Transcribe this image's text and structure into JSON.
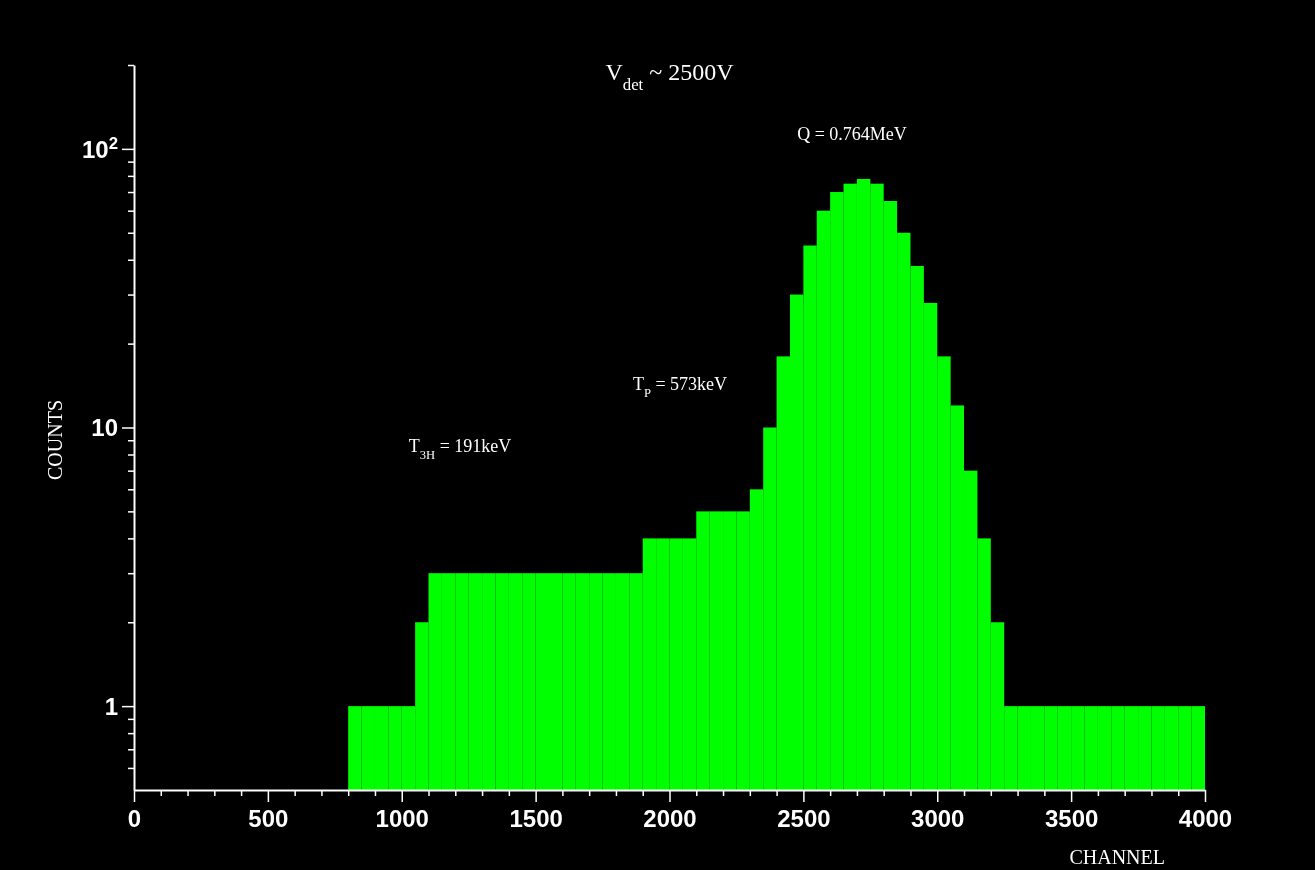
{
  "chart_data": {
    "type": "histogram",
    "title": "V$_{det}$ ~ 2500V",
    "xlabel": "CHANNEL",
    "ylabel": "COUNTS",
    "color": "#00ff00",
    "log": "y",
    "grid": false,
    "bins": [
      800,
      850,
      900,
      950,
      1000,
      1050,
      1100,
      1150,
      1200,
      1250,
      1300,
      1350,
      1400,
      1450,
      1500,
      1550,
      1600,
      1650,
      1700,
      1750,
      1800,
      1850,
      1900,
      1950,
      2000,
      2050,
      2100,
      2150,
      2200,
      2250,
      2300,
      2350,
      2400,
      2450,
      2500,
      2550,
      2600,
      2650,
      2700,
      2750,
      2800,
      2850,
      2900,
      2950,
      3000,
      3050,
      3100,
      3150,
      3200,
      3250,
      3300,
      3350,
      3400,
      3450,
      3500,
      3550,
      3600,
      3650,
      3700,
      3750,
      3800,
      3850,
      3900,
      3950,
      4000
    ],
    "values": [
      1,
      1,
      1,
      1,
      1,
      2,
      3,
      3,
      3,
      3,
      3,
      3,
      3,
      3,
      3,
      3,
      3,
      3,
      3,
      3,
      3,
      3,
      4,
      4,
      4,
      4,
      5,
      5,
      5,
      5,
      6,
      10,
      18,
      30,
      45,
      60,
      70,
      75,
      78,
      75,
      65,
      50,
      38,
      28,
      18,
      12,
      7,
      4,
      2,
      1,
      1,
      1,
      1,
      1,
      1,
      1,
      1,
      1,
      1,
      1,
      1,
      1,
      1,
      1
    ],
    "xlim": [
      0,
      4000
    ],
    "ylim": [
      0.5,
      200
    ],
    "xticks": [
      0,
      {
        "value": 100,
        "label": null
      },
      {
        "value": 200,
        "label": null
      },
      {
        "value": 300,
        "label": null
      },
      {
        "value": 400,
        "label": null
      },
      500,
      {
        "value": 600,
        "label": null
      },
      {
        "value": 700,
        "label": null
      },
      {
        "value": 800,
        "label": null
      },
      {
        "value": 900,
        "label": null
      },
      1000,
      {
        "value": 1100,
        "label": null
      },
      {
        "value": 1200,
        "label": null
      },
      {
        "value": 1300,
        "label": null
      },
      {
        "value": 1400,
        "label": null
      },
      1500,
      {
        "value": 1600,
        "label": null
      },
      {
        "value": 1700,
        "label": null
      },
      {
        "value": 1800,
        "label": null
      },
      {
        "value": 1900,
        "label": null
      },
      2000,
      {
        "value": 2100,
        "label": null
      },
      {
        "value": 2200,
        "label": null
      },
      {
        "value": 2300,
        "label": null
      },
      {
        "value": 2400,
        "label": null
      },
      2500,
      {
        "value": 2600,
        "label": null
      },
      {
        "value": 2700,
        "label": null
      },
      {
        "value": 2800,
        "label": null
      },
      {
        "value": 2900,
        "label": null
      },
      3000,
      {
        "value": 3100,
        "label": null
      },
      {
        "value": 3200,
        "label": null
      },
      {
        "value": 3300,
        "label": null
      },
      {
        "value": 3400,
        "label": null
      },
      3500,
      {
        "value": 3600,
        "label": null
      },
      {
        "value": 3700,
        "label": null
      },
      {
        "value": 3800,
        "label": null
      },
      {
        "value": 3900,
        "label": null
      },
      4000
    ],
    "yticks": [
      {
        "value": 0.6,
        "label": null
      },
      {
        "value": 0.7,
        "label": null
      },
      {
        "value": 0.8,
        "label": null
      },
      {
        "value": 0.9,
        "label": null
      },
      1,
      {
        "value": 2,
        "label": null
      },
      {
        "value": 3,
        "label": null
      },
      {
        "value": 4,
        "label": null
      },
      {
        "value": 5,
        "label": null
      },
      {
        "value": 6,
        "label": null
      },
      {
        "value": 7,
        "label": null
      },
      {
        "value": 8,
        "label": null
      },
      {
        "value": 9,
        "label": null
      },
      10,
      {
        "value": 20,
        "label": null
      },
      {
        "value": 30,
        "label": null
      },
      {
        "value": 40,
        "label": null
      },
      {
        "value": 50,
        "label": null
      },
      {
        "value": 60,
        "label": null
      },
      {
        "value": 70,
        "label": null
      },
      {
        "value": 80,
        "label": null
      },
      {
        "value": 90,
        "label": null
      },
      {
        "value": 100,
        "label": "10$^{2}$"
      },
      {
        "value": 200,
        "label": null
      }
    ],
    "annotations": [
      "T$_{3H}$ = 191keV",
      "T$_{P}$ = 573keV",
      "Q = 0.764MeV"
    ]
  }
}
